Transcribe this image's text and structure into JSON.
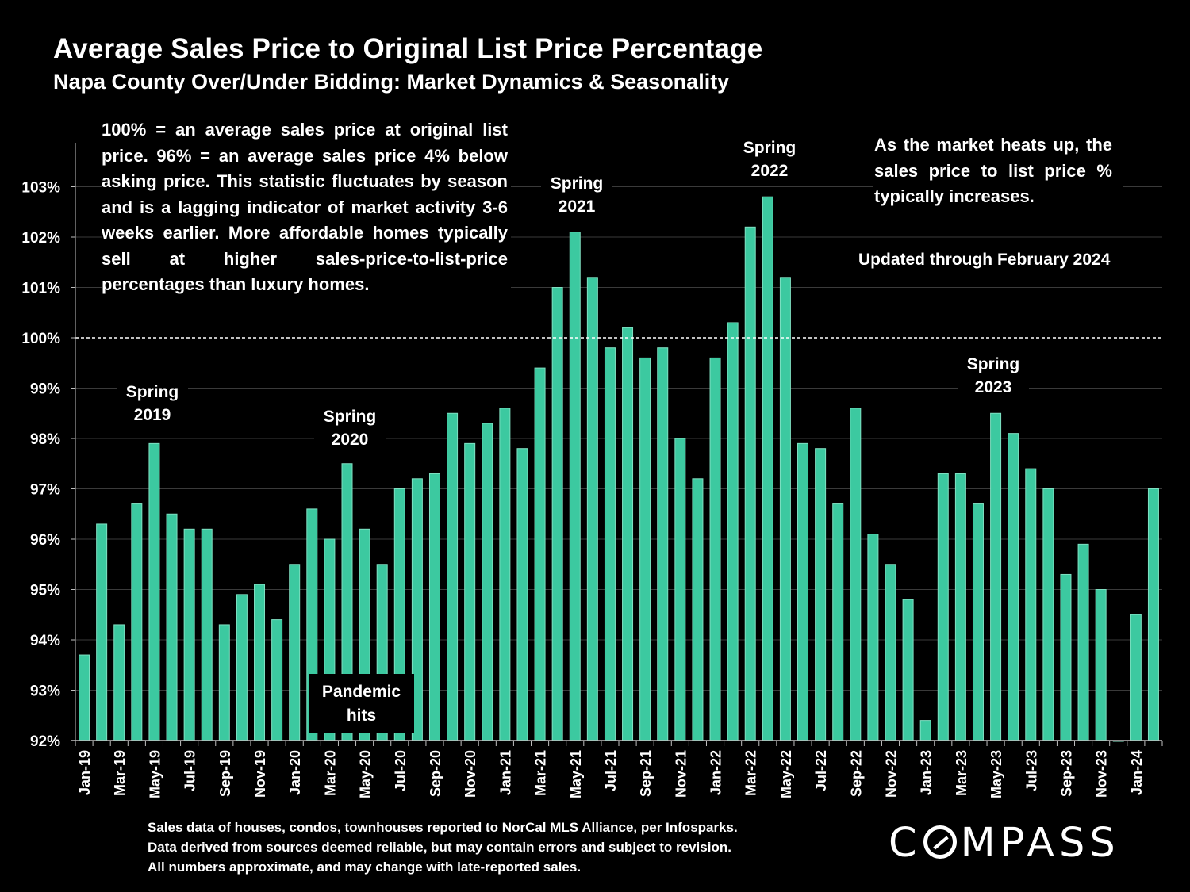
{
  "header": {
    "title": "Average Sales Price to Original List Price Percentage",
    "subtitle": "Napa County Over/Under Bidding: Market Dynamics & Seasonality"
  },
  "notes": {
    "left": "100% = an average sales price at original list price. 96% = an average sales price 4% below asking price. This statistic fluctuates by season and is a lagging indicator of market activity 3-6 weeks earlier. More affordable homes typically sell at higher sales-price-to-list-price percentages than luxury homes.",
    "right": "As the market heats up, the sales price to list price % typically increases.",
    "updated": "Updated through February 2024"
  },
  "callouts": {
    "spring2019": [
      "Spring",
      "2019"
    ],
    "spring2020": [
      "Spring",
      "2020"
    ],
    "spring2021": [
      "Spring",
      "2021"
    ],
    "spring2022": [
      "Spring",
      "2022"
    ],
    "spring2023": [
      "Spring",
      "2023"
    ],
    "pandemic": [
      "Pandemic",
      "hits"
    ]
  },
  "footnote": [
    "Sales data of houses, condos, townhouses reported to NorCal MLS Alliance, per Infosparks.",
    "Data derived from sources deemed reliable, but may contain errors and subject to revision.",
    "All numbers approximate, and may change with late-reported sales."
  ],
  "logo": {
    "before": "C",
    "after": "MPASS"
  },
  "colors": {
    "bar": "#3cc9a0",
    "bar_edge": "#7fe0c2",
    "grid": "#3a3a3a",
    "axis": "#bfbfbf",
    "background": "#000000"
  },
  "chart_data": {
    "type": "bar",
    "title": "Average Sales Price to Original List Price Percentage",
    "xlabel": "",
    "ylabel": "",
    "ylim": [
      92,
      103.9
    ],
    "yticks": [
      92,
      93,
      94,
      95,
      96,
      97,
      98,
      99,
      100,
      101,
      102,
      103
    ],
    "ytick_labels": [
      "92%",
      "93%",
      "94%",
      "95%",
      "96%",
      "97%",
      "98%",
      "99%",
      "100%",
      "101%",
      "102%",
      "103%"
    ],
    "reference_line": 100,
    "grid": true,
    "categories": [
      "Jan-19",
      "Feb-19",
      "Mar-19",
      "Apr-19",
      "May-19",
      "Jun-19",
      "Jul-19",
      "Aug-19",
      "Sep-19",
      "Oct-19",
      "Nov-19",
      "Dec-19",
      "Jan-20",
      "Feb-20",
      "Mar-20",
      "Apr-20",
      "May-20",
      "Jun-20",
      "Jul-20",
      "Aug-20",
      "Sep-20",
      "Oct-20",
      "Nov-20",
      "Dec-20",
      "Jan-21",
      "Feb-21",
      "Mar-21",
      "Apr-21",
      "May-21",
      "Jun-21",
      "Jul-21",
      "Aug-21",
      "Sep-21",
      "Oct-21",
      "Nov-21",
      "Dec-21",
      "Jan-22",
      "Feb-22",
      "Mar-22",
      "Apr-22",
      "May-22",
      "Jun-22",
      "Jul-22",
      "Aug-22",
      "Sep-22",
      "Oct-22",
      "Nov-22",
      "Dec-22",
      "Jan-23",
      "Feb-23",
      "Mar-23",
      "Apr-23",
      "May-23",
      "Jun-23",
      "Jul-23",
      "Aug-23",
      "Sep-23",
      "Oct-23",
      "Nov-23",
      "Dec-23",
      "Jan-24",
      "Feb-24"
    ],
    "tick_labels": [
      "Jan-19",
      "",
      "Mar-19",
      "",
      "May-19",
      "",
      "Jul-19",
      "",
      "Sep-19",
      "",
      "Nov-19",
      "",
      "Jan-20",
      "",
      "Mar-20",
      "",
      "May-20",
      "",
      "Jul-20",
      "",
      "Sep-20",
      "",
      "Nov-20",
      "",
      "Jan-21",
      "",
      "Mar-21",
      "",
      "May-21",
      "",
      "Jul-21",
      "",
      "Sep-21",
      "",
      "Nov-21",
      "",
      "Jan-22",
      "",
      "Mar-22",
      "",
      "May-22",
      "",
      "Jul-22",
      "",
      "Sep-22",
      "",
      "Nov-22",
      "",
      "Jan-23",
      "",
      "Mar-23",
      "",
      "May-23",
      "",
      "Jul-23",
      "",
      "Sep-23",
      "",
      "Nov-23",
      "",
      "Jan-24",
      ""
    ],
    "values": [
      93.7,
      96.3,
      94.3,
      96.7,
      97.9,
      96.5,
      96.2,
      96.2,
      94.3,
      94.9,
      95.1,
      94.4,
      95.5,
      96.6,
      96.0,
      97.5,
      96.2,
      95.5,
      97.0,
      97.2,
      97.3,
      98.5,
      97.9,
      98.3,
      98.6,
      97.8,
      99.4,
      101.0,
      102.1,
      101.2,
      99.8,
      100.2,
      99.6,
      99.8,
      98.0,
      97.2,
      99.6,
      100.3,
      102.2,
      102.8,
      101.2,
      97.9,
      97.8,
      96.7,
      98.6,
      96.1,
      95.5,
      94.8,
      92.4,
      97.3,
      97.3,
      96.7,
      98.5,
      98.1,
      97.4,
      97.0,
      95.3,
      95.9,
      95.0,
      92.0,
      94.5,
      97.0
    ]
  }
}
